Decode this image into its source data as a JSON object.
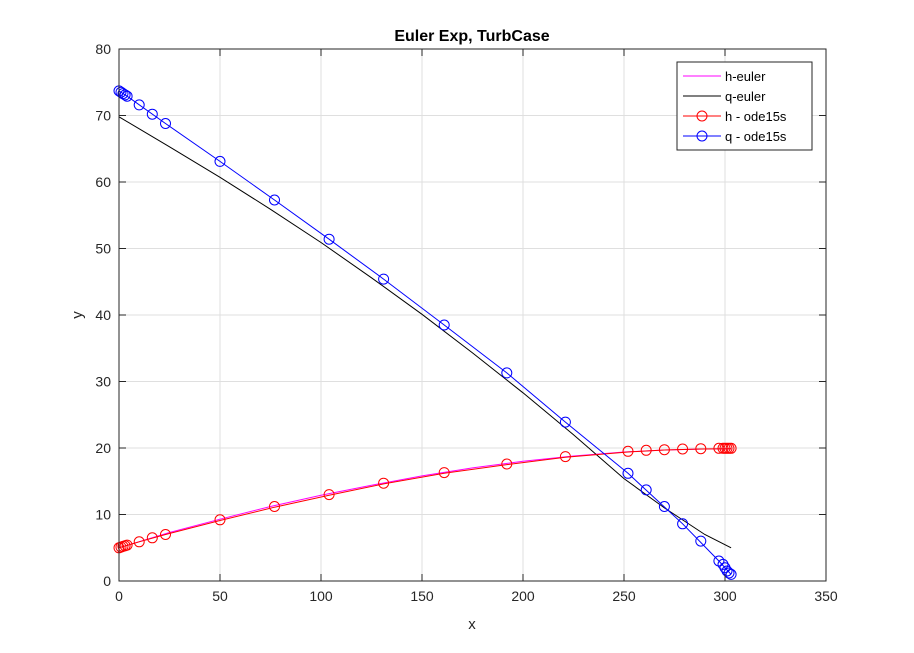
{
  "chart_data": {
    "type": "line",
    "title": "Euler Exp, TurbCase",
    "xlabel": "x",
    "ylabel": "y",
    "xlim": [
      0,
      350
    ],
    "ylim": [
      0,
      80
    ],
    "xticks": [
      0,
      50,
      100,
      150,
      200,
      250,
      300,
      350
    ],
    "yticks": [
      0,
      10,
      20,
      30,
      40,
      50,
      60,
      70,
      80
    ],
    "grid": true,
    "legend_position": "top-right",
    "series": [
      {
        "name": "h-euler",
        "color": "#ff00ff",
        "marker": "none",
        "x": [
          0,
          25,
          50,
          75,
          100,
          125,
          150,
          175,
          200,
          225,
          250,
          270,
          290,
          303
        ],
        "y": [
          5.0,
          7.3,
          9.3,
          11.2,
          12.9,
          14.4,
          15.8,
          17.0,
          18.0,
          18.8,
          19.4,
          19.7,
          19.85,
          19.9
        ]
      },
      {
        "name": "q-euler",
        "color": "#000000",
        "marker": "none",
        "x": [
          0,
          25,
          50,
          75,
          100,
          125,
          150,
          175,
          200,
          225,
          250,
          270,
          290,
          303
        ],
        "y": [
          69.8,
          65.3,
          60.7,
          55.9,
          50.9,
          45.6,
          40.1,
          34.3,
          28.3,
          22.0,
          15.4,
          11.0,
          7.0,
          5.0
        ]
      },
      {
        "name": "h - ode15s",
        "color": "#ff0000",
        "marker": "circle",
        "x": [
          0,
          1,
          2,
          3,
          4,
          10,
          16.5,
          23,
          50,
          77,
          104,
          131,
          161,
          192,
          221,
          252,
          261,
          270,
          279,
          288,
          297,
          299,
          300,
          301,
          302,
          303
        ],
        "y": [
          5.0,
          5.1,
          5.2,
          5.3,
          5.4,
          5.9,
          6.5,
          7.0,
          9.2,
          11.2,
          13.0,
          14.7,
          16.3,
          17.6,
          18.7,
          19.5,
          19.65,
          19.75,
          19.85,
          19.9,
          19.95,
          19.95,
          19.95,
          19.95,
          19.95,
          19.95
        ],
        "line_x": [
          0,
          10,
          23,
          50,
          77,
          104,
          131,
          161,
          192,
          221,
          252,
          270,
          288,
          303
        ],
        "line_y": [
          5.0,
          5.9,
          7.0,
          9.1,
          11.1,
          12.9,
          14.6,
          16.2,
          17.5,
          18.6,
          19.4,
          19.7,
          19.85,
          19.9
        ]
      },
      {
        "name": "q - ode15s",
        "color": "#0000ff",
        "marker": "circle",
        "x": [
          0,
          1,
          2,
          3,
          4,
          10,
          16.5,
          23,
          50,
          77,
          104,
          131,
          161,
          192,
          221,
          252,
          261,
          270,
          279,
          288,
          297,
          299,
          300,
          301,
          302,
          303
        ],
        "y": [
          73.7,
          73.5,
          73.3,
          73.1,
          72.9,
          71.6,
          70.2,
          68.8,
          63.1,
          57.3,
          51.4,
          45.4,
          38.5,
          31.3,
          23.9,
          16.2,
          13.7,
          11.2,
          8.6,
          6.0,
          3.0,
          2.5,
          2.0,
          1.5,
          1.2,
          1.0
        ],
        "line_x": [
          0,
          4,
          23,
          50,
          77,
          104,
          131,
          161,
          192,
          221,
          252,
          279,
          297,
          303
        ],
        "line_y": [
          73.7,
          72.9,
          68.8,
          63.1,
          57.3,
          51.4,
          45.4,
          38.5,
          31.3,
          23.9,
          16.2,
          8.6,
          3.0,
          1.0
        ]
      }
    ]
  }
}
